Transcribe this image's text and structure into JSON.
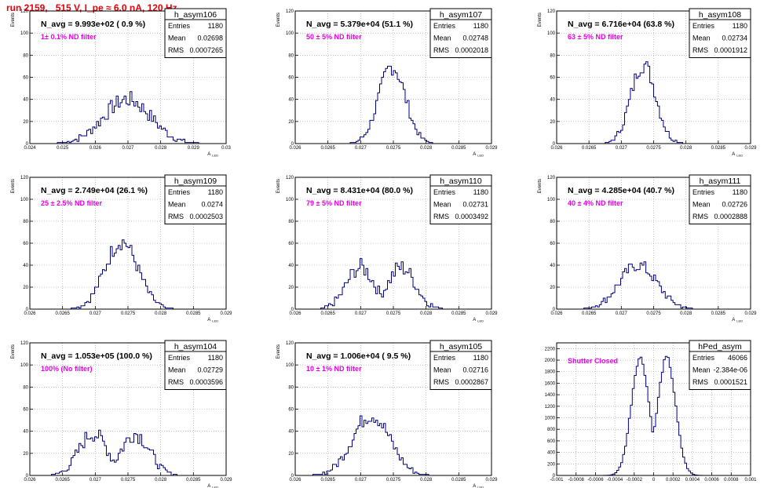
{
  "page": {
    "title": "run 2159,   515 V, I_pe ≈ 6.0 nA, 120 Hz"
  },
  "colors": {
    "title": "#e8000b",
    "annotation": "#e600e6",
    "histogram": "#000080",
    "axis": "#000000",
    "grid": "#999999",
    "stats_bg": "#ffffff"
  },
  "stats_labels": {
    "entries": "Entries",
    "mean": "Mean",
    "rms": "RMS"
  },
  "chart_data": [
    {
      "type": "histogram",
      "name": "h_asym106",
      "stats": {
        "entries": "1180",
        "mean": "0.02698",
        "rms": "0.0007265"
      },
      "navg": "N_avg = 9.993e+02 ( 0.9 %)",
      "filter": "1± 0.1% ND filter",
      "xlim": [
        0.024,
        0.03
      ],
      "ylim": [
        0,
        120
      ],
      "xticks": [
        "0.024",
        "0.025",
        "0.026",
        "0.027",
        "0.028",
        "0.029",
        "0.03"
      ],
      "xtickvals": [
        0.024,
        0.025,
        0.026,
        0.027,
        0.028,
        0.029,
        0.03
      ],
      "yticks": [
        0,
        20,
        40,
        60,
        80,
        100,
        120
      ],
      "ylabel": "Events",
      "xlabel": "A",
      "dist": {
        "mu": 0.02698,
        "sigma": 0.0007265,
        "peak": 40,
        "noise": 8
      }
    },
    {
      "type": "histogram",
      "name": "h_asym107",
      "stats": {
        "entries": "1180",
        "mean": "0.02748",
        "rms": "0.0002018"
      },
      "navg": "N_avg = 5.379e+04 (51.1 %)",
      "filter": "50 ± 5% ND filter",
      "xlim": [
        0.026,
        0.029
      ],
      "ylim": [
        0,
        120
      ],
      "xticks": [
        "0.026",
        "0.0265",
        "0.027",
        "0.0275",
        "0.028",
        "0.0285",
        "0.029"
      ],
      "xtickvals": [
        0.026,
        0.0265,
        0.027,
        0.0275,
        0.028,
        0.0285,
        0.029
      ],
      "yticks": [
        0,
        20,
        40,
        60,
        80,
        100,
        120
      ],
      "ylabel": "Events",
      "xlabel": "A",
      "dist": {
        "mu": 0.02748,
        "sigma": 0.0002018,
        "peak": 70,
        "noise": 8
      }
    },
    {
      "type": "histogram",
      "name": "h_asym108",
      "stats": {
        "entries": "1180",
        "mean": "0.02734",
        "rms": "0.0001912"
      },
      "navg": "N_avg = 6.716e+04 (63.8 %)",
      "filter": "63 ± 5% ND filter",
      "xlim": [
        0.026,
        0.029
      ],
      "ylim": [
        0,
        120
      ],
      "xticks": [
        "0.026",
        "0.0265",
        "0.027",
        "0.0275",
        "0.028",
        "0.0285",
        "0.029"
      ],
      "xtickvals": [
        0.026,
        0.0265,
        0.027,
        0.0275,
        0.028,
        0.0285,
        0.029
      ],
      "yticks": [
        0,
        20,
        40,
        60,
        80,
        100,
        120
      ],
      "ylabel": "Events",
      "xlabel": "A",
      "dist": {
        "mu": 0.02734,
        "sigma": 0.0001912,
        "peak": 72,
        "noise": 8
      }
    },
    {
      "type": "histogram",
      "name": "h_asym109",
      "stats": {
        "entries": "1180",
        "mean": "0.0274",
        "rms": "0.0002503"
      },
      "navg": "N_avg = 2.749e+04 (26.1 %)",
      "filter": "25 ± 2.5% ND filter",
      "xlim": [
        0.026,
        0.029
      ],
      "ylim": [
        0,
        120
      ],
      "xticks": [
        "0.026",
        "0.0265",
        "0.027",
        "0.0275",
        "0.028",
        "0.0285",
        "0.029"
      ],
      "xtickvals": [
        0.026,
        0.0265,
        0.027,
        0.0275,
        0.028,
        0.0285,
        0.029
      ],
      "yticks": [
        0,
        20,
        40,
        60,
        80,
        100,
        120
      ],
      "ylabel": "Events",
      "xlabel": "A",
      "dist": {
        "mu": 0.0274,
        "sigma": 0.0002503,
        "peak": 62,
        "noise": 8
      }
    },
    {
      "type": "histogram",
      "name": "h_asym110",
      "stats": {
        "entries": "1180",
        "mean": "0.02731",
        "rms": "0.0003492"
      },
      "navg": "N_avg = 8.431e+04 (80.0 %)",
      "filter": "79 ± 5% ND filter",
      "xlim": [
        0.026,
        0.029
      ],
      "ylim": [
        0,
        120
      ],
      "xticks": [
        "0.026",
        "0.0265",
        "0.027",
        "0.0275",
        "0.028",
        "0.0285",
        "0.029"
      ],
      "xtickvals": [
        0.026,
        0.0265,
        0.027,
        0.0275,
        0.028,
        0.0285,
        0.029
      ],
      "yticks": [
        0,
        20,
        40,
        60,
        80,
        100,
        120
      ],
      "ylabel": "Events",
      "xlabel": "A",
      "dist": {
        "mu": 0.02731,
        "sigma": 0.0003492,
        "peak": 40,
        "noise": 8,
        "bimodal": true
      }
    },
    {
      "type": "histogram",
      "name": "h_asym111",
      "stats": {
        "entries": "1180",
        "mean": "0.02726",
        "rms": "0.0002888"
      },
      "navg": "N_avg = 4.285e+04 (40.7 %)",
      "filter": "40 ± 4% ND filter",
      "xlim": [
        0.026,
        0.029
      ],
      "ylim": [
        0,
        120
      ],
      "xticks": [
        "0.026",
        "0.0265",
        "0.027",
        "0.0275",
        "0.028",
        "0.0285",
        "0.029"
      ],
      "xtickvals": [
        0.026,
        0.0265,
        0.027,
        0.0275,
        0.028,
        0.0285,
        0.029
      ],
      "yticks": [
        0,
        20,
        40,
        60,
        80,
        100,
        120
      ],
      "ylabel": "Events",
      "xlabel": "A",
      "dist": {
        "mu": 0.02726,
        "sigma": 0.0002888,
        "peak": 40,
        "noise": 6
      }
    },
    {
      "type": "histogram",
      "name": "h_asym104",
      "stats": {
        "entries": "1180",
        "mean": "0.02729",
        "rms": "0.0003596"
      },
      "navg": "N_avg = 1.053e+05 (100.0 %)",
      "filter": "100% (No filter)",
      "xlim": [
        0.026,
        0.029
      ],
      "ylim": [
        0,
        120
      ],
      "xticks": [
        "0.026",
        "0.0265",
        "0.027",
        "0.0275",
        "0.028",
        "0.0285",
        "0.029"
      ],
      "xtickvals": [
        0.026,
        0.0265,
        0.027,
        0.0275,
        0.028,
        0.0285,
        0.029
      ],
      "yticks": [
        0,
        20,
        40,
        60,
        80,
        100,
        120
      ],
      "ylabel": "Events",
      "xlabel": "A",
      "dist": {
        "mu": 0.02729,
        "sigma": 0.0003596,
        "peak": 40,
        "noise": 8,
        "bimodal": true
      }
    },
    {
      "type": "histogram",
      "name": "h_asym105",
      "stats": {
        "entries": "1180",
        "mean": "0.02716",
        "rms": "0.0002867"
      },
      "navg": "N_avg = 1.006e+04 ( 9.5 %)",
      "filter": "10 ± 1% ND filter",
      "xlim": [
        0.026,
        0.029
      ],
      "ylim": [
        0,
        120
      ],
      "xticks": [
        "0.026",
        "0.0265",
        "0.027",
        "0.0275",
        "0.028",
        "0.0285",
        "0.029"
      ],
      "xtickvals": [
        0.026,
        0.0265,
        0.027,
        0.0275,
        0.028,
        0.0285,
        0.029
      ],
      "yticks": [
        0,
        20,
        40,
        60,
        80,
        100,
        120
      ],
      "ylabel": "Events",
      "xlabel": "A",
      "dist": {
        "mu": 0.02716,
        "sigma": 0.0002867,
        "peak": 55,
        "noise": 8
      }
    },
    {
      "type": "histogram",
      "name": "hPed_asym",
      "stats": {
        "entries": "46066",
        "mean": "-2.384e-06",
        "rms": "0.0001521"
      },
      "navg": "",
      "filter": "Shutter Closed",
      "xlim": [
        -0.001,
        0.001
      ],
      "ylim": [
        0,
        2300
      ],
      "xticks": [
        "-0.001",
        "-0.0008",
        "-0.0006",
        "-0.0004",
        "-0.0002",
        "0",
        "0.0002",
        "0.0004",
        "0.0006",
        "0.0008",
        "0.001"
      ],
      "xtickvals": [
        -0.001,
        -0.0008,
        -0.0006,
        -0.0004,
        -0.0002,
        0,
        0.0002,
        0.0004,
        0.0006,
        0.0008,
        0.001
      ],
      "yticks": [
        0,
        200,
        400,
        600,
        800,
        1000,
        1200,
        1400,
        1600,
        1800,
        2000,
        2200
      ],
      "ylabel": "",
      "xlabel": "",
      "dist": {
        "mu": -2.4e-06,
        "sigma": 0.0001521,
        "peak": 2150,
        "noise": 40,
        "bimodal": true
      }
    }
  ]
}
